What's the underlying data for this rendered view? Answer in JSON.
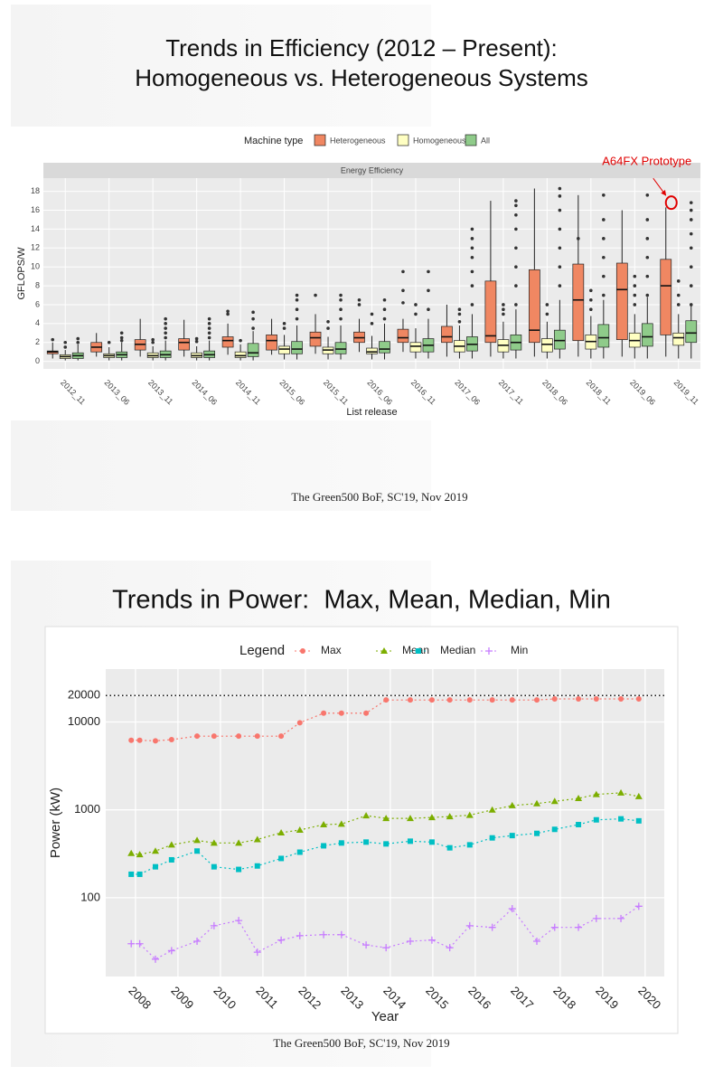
{
  "chart_data": [
    {
      "type": "box",
      "title": [
        "Trends in Efficiency (2012 – Present):",
        "Homogeneous vs. Heterogeneous Systems"
      ],
      "panel": "Energy Efficiency",
      "legend_title": "Machine type",
      "x_label": "List release",
      "y_label": "GFLOPS/W",
      "footer": "The Green500 BoF, SC'19, Nov 2019",
      "annotation": {
        "text": "A64FX Prototype",
        "y": 16.8
      },
      "categories": [
        "2012_11",
        "2013_06",
        "2013_11",
        "2014_06",
        "2014_11",
        "2015_06",
        "2015_11",
        "2016_06",
        "2016_11",
        "2017_06",
        "2017_11",
        "2018_06",
        "2018_11",
        "2019_06",
        "2019_11"
      ],
      "ylim": [
        -0.8,
        19.4
      ],
      "yticks": [
        0,
        2,
        4,
        6,
        8,
        10,
        12,
        14,
        16,
        18
      ],
      "grid": true,
      "series": [
        {
          "name": "Heterogeneous",
          "color": "#f08762",
          "low": [
            0.3,
            0.5,
            0.5,
            0.5,
            0.7,
            0.7,
            0.8,
            1,
            1,
            0.5,
            0.5,
            0.5,
            0.5,
            0.5,
            0.5
          ],
          "q1": [
            0.8,
            1.0,
            1.2,
            1.2,
            1.5,
            1.2,
            1.6,
            2,
            2,
            2.0,
            2.0,
            2.0,
            2.2,
            2.3,
            2.8
          ],
          "median": [
            1.0,
            1.5,
            1.8,
            2.0,
            2.2,
            2.2,
            2.5,
            2.5,
            2.5,
            2.6,
            2.7,
            3.3,
            6.5,
            7.6,
            8.0
          ],
          "q3": [
            1.1,
            2.0,
            2.3,
            2.4,
            2.6,
            2.8,
            3.1,
            3.1,
            3.4,
            3.7,
            8.5,
            9.7,
            10.3,
            10.4,
            10.8
          ],
          "high": [
            2.0,
            3.0,
            4.5,
            4.4,
            4.0,
            4.5,
            5.0,
            4.5,
            4.5,
            6.0,
            17,
            18.3,
            17.6,
            16,
            16.3
          ],
          "outliers": [
            [
              2.3
            ],
            [],
            [],
            [],
            [
              5.0,
              5.3
            ],
            [],
            [
              7.0
            ],
            [
              6.0,
              6.5
            ],
            [
              6.2,
              7.5,
              9.5
            ],
            [],
            [],
            [],
            [
              13
            ],
            [],
            []
          ]
        },
        {
          "name": "Homogeneous",
          "color": "#ffffc2",
          "low": [
            0.1,
            0.1,
            0.1,
            0.1,
            0.1,
            0.2,
            0.2,
            0.2,
            0.3,
            0.3,
            0.3,
            0.3,
            0.3,
            0.3,
            0.3
          ],
          "q1": [
            0.3,
            0.4,
            0.4,
            0.4,
            0.4,
            0.8,
            0.8,
            0.8,
            1.0,
            1.0,
            1.0,
            1.0,
            1.3,
            1.5,
            1.7
          ],
          "median": [
            0.5,
            0.6,
            0.6,
            0.6,
            0.6,
            1.3,
            1.2,
            1.0,
            1.6,
            1.6,
            1.7,
            1.8,
            2.1,
            2.2,
            2.5
          ],
          "q3": [
            0.7,
            0.8,
            0.9,
            0.9,
            1.0,
            1.6,
            1.5,
            1.4,
            2.0,
            2.2,
            2.3,
            2.4,
            2.8,
            3.0,
            3.0
          ],
          "high": [
            1.2,
            1.5,
            1.6,
            1.6,
            1.8,
            2.8,
            2.6,
            2.7,
            3.5,
            3.8,
            4.2,
            4.2,
            4.8,
            5.0,
            5.0
          ],
          "outliers": [
            [
              1.5,
              2.0
            ],
            [
              2.0
            ],
            [
              2.0,
              2.3
            ],
            [
              2.1,
              2.4
            ],
            [
              2.2
            ],
            [
              3.5,
              4.0
            ],
            [
              3.5,
              4.2
            ],
            [
              4,
              5
            ],
            [
              5,
              6
            ],
            [
              4.2,
              5.0,
              5.5
            ],
            [
              5.0,
              5.5,
              6.0
            ],
            [
              5,
              6
            ],
            [
              5.5,
              6.5,
              7.5
            ],
            [
              6,
              7,
              8,
              9
            ],
            [
              6,
              7,
              8.5
            ]
          ]
        },
        {
          "name": "All",
          "color": "#8fcb8a",
          "low": [
            0.1,
            0.1,
            0.1,
            0.1,
            0.1,
            0.2,
            0.2,
            0.2,
            0.3,
            0.3,
            0.3,
            0.3,
            0.3,
            0.3,
            0.3
          ],
          "q1": [
            0.3,
            0.4,
            0.4,
            0.4,
            0.5,
            0.8,
            0.8,
            0.9,
            1.0,
            1.1,
            1.2,
            1.3,
            1.5,
            1.6,
            2.0
          ],
          "median": [
            0.6,
            0.7,
            0.7,
            0.7,
            0.9,
            1.3,
            1.3,
            1.3,
            1.7,
            1.8,
            2.0,
            2.2,
            2.5,
            2.6,
            3.0
          ],
          "q3": [
            0.9,
            1.0,
            1.1,
            1.1,
            1.9,
            2.1,
            2.0,
            2.1,
            2.4,
            2.6,
            2.8,
            3.3,
            3.9,
            4.0,
            4.3
          ],
          "high": [
            1.8,
            2.0,
            2.2,
            2.2,
            3.2,
            3.8,
            3.8,
            4.0,
            4.5,
            5.0,
            5.5,
            6.5,
            6.5,
            6.8,
            6.0
          ],
          "outliers": [
            [
              2.0,
              2.4
            ],
            [
              2.2,
              2.5,
              3.0
            ],
            [
              2.5,
              3.0,
              3.5,
              4.0,
              4.5
            ],
            [
              2.5,
              3.0,
              3.5,
              4.0,
              4.5
            ],
            [
              3.5,
              4.5,
              5.2
            ],
            [
              4.5,
              5.5,
              6.5,
              7.0
            ],
            [
              4.5,
              5.5,
              6.5,
              7.0
            ],
            [
              4.5,
              5.5,
              6.5
            ],
            [
              5.5,
              7.5,
              9.5
            ],
            [
              6,
              8,
              9.5,
              11,
              12,
              13,
              14
            ],
            [
              6,
              8,
              10,
              12,
              14,
              15.5,
              16.5,
              17
            ],
            [
              8,
              10,
              12,
              14,
              16,
              17.5,
              18.3
            ],
            [
              7,
              9,
              11,
              13,
              15,
              17.6
            ],
            [
              7,
              9,
              11,
              13,
              15,
              17.6
            ],
            [
              6,
              8,
              10,
              12,
              13.5,
              15,
              16,
              16.8
            ]
          ]
        }
      ]
    },
    {
      "type": "line",
      "title": "Trends in Power:  Max, Mean, Median, Min",
      "legend_title": "Legend",
      "x_label": "Year",
      "y_label": "Power (kW)",
      "footer": "The Green500 BoF, SC'19, Nov 2019",
      "log_y": true,
      "hline": 20000,
      "grid": true,
      "xlim": [
        2007.3,
        2020.45
      ],
      "xticks": [
        2008,
        2009,
        2010,
        2011,
        2012,
        2013,
        2014,
        2015,
        2016,
        2017,
        2018,
        2019,
        2020
      ],
      "ylim": [
        12.7,
        40000
      ],
      "yticks": [
        100,
        1000,
        10000,
        20000
      ],
      "x": [
        2007.9,
        2008.1,
        2008.47,
        2008.85,
        2009.45,
        2009.85,
        2010.43,
        2010.87,
        2011.43,
        2011.87,
        2012.43,
        2012.85,
        2013.43,
        2013.9,
        2014.47,
        2014.98,
        2015.4,
        2015.87,
        2016.4,
        2016.87,
        2017.45,
        2017.87,
        2018.43,
        2018.85,
        2019.43,
        2019.85
      ],
      "series": [
        {
          "name": "Max",
          "color": "#f8766d",
          "shape": "circle",
          "values": [
            6200,
            6200,
            6100,
            6300,
            6900,
            6900,
            6900,
            6900,
            6900,
            9800,
            12600,
            12600,
            12600,
            17800,
            17800,
            17800,
            17800,
            17800,
            17800,
            17800,
            17800,
            18300,
            18300,
            18300,
            18300,
            18300
          ]
        },
        {
          "name": "Mean",
          "color": "#7cae00",
          "shape": "triangle",
          "values": [
            320,
            310,
            340,
            400,
            450,
            420,
            420,
            460,
            550,
            590,
            680,
            690,
            860,
            800,
            800,
            820,
            840,
            870,
            1000,
            1120,
            1180,
            1250,
            1350,
            1500,
            1560,
            1420
          ]
        },
        {
          "name": "Median",
          "color": "#00bfc4",
          "shape": "square",
          "values": [
            185,
            185,
            225,
            270,
            340,
            225,
            210,
            230,
            280,
            330,
            390,
            420,
            430,
            410,
            440,
            430,
            370,
            400,
            480,
            510,
            540,
            600,
            680,
            770,
            790,
            750
          ]
        },
        {
          "name": "Min",
          "color": "#c77cff",
          "shape": "plus",
          "values": [
            30,
            30,
            20,
            25,
            32,
            48,
            55,
            24,
            33,
            37,
            38,
            38,
            29,
            27,
            32,
            33,
            27,
            48,
            46,
            75,
            32,
            46,
            46,
            58,
            58,
            80
          ]
        }
      ]
    }
  ]
}
